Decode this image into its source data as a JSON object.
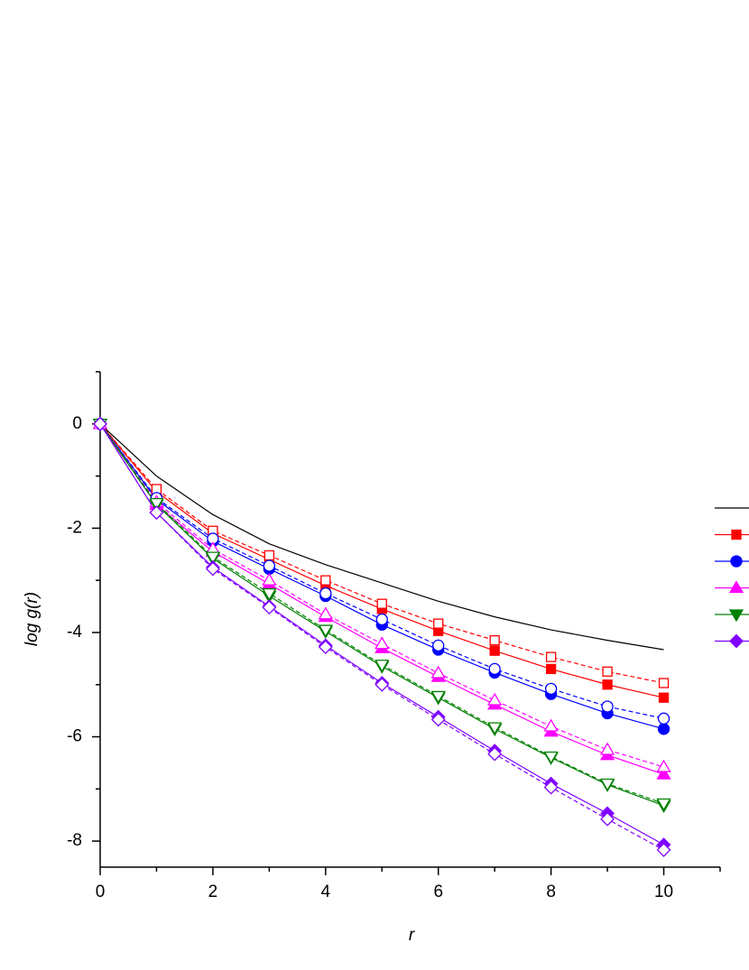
{
  "chart_data": {
    "type": "line",
    "x_label": "r",
    "y_label": "log g(r)",
    "x": [
      0,
      1,
      2,
      3,
      4,
      5,
      6,
      7,
      8,
      9,
      10
    ],
    "xlim": [
      0,
      11
    ],
    "ylim": [
      -8.5,
      1
    ],
    "xticks": [
      0,
      2,
      4,
      6,
      8,
      10
    ],
    "yticks": [
      0,
      -2,
      -4,
      -6,
      -8
    ],
    "xminorticks": [
      1,
      3,
      5,
      7,
      9,
      11
    ],
    "yminorticks": [
      1,
      -1,
      -3,
      -5,
      -7
    ],
    "series": [
      {
        "color": "#000000",
        "marker": "none",
        "filled": true,
        "dashed": false,
        "in_legend": true,
        "values": [
          0,
          -1.0,
          -1.74,
          -2.3,
          -2.7,
          -3.05,
          -3.4,
          -3.7,
          -3.95,
          -4.15,
          -4.33
        ]
      },
      {
        "color": "#ff0000",
        "marker": "square",
        "filled": true,
        "dashed": false,
        "in_legend": true,
        "values": [
          0,
          -1.3,
          -2.1,
          -2.6,
          -3.1,
          -3.55,
          -3.97,
          -4.35,
          -4.7,
          -5.0,
          -5.25
        ]
      },
      {
        "color": "#ff0000",
        "marker": "square",
        "filled": false,
        "dashed": true,
        "in_legend": false,
        "values": [
          0,
          -1.25,
          -2.05,
          -2.52,
          -3.0,
          -3.45,
          -3.83,
          -4.15,
          -4.47,
          -4.75,
          -4.97
        ]
      },
      {
        "color": "#0000ff",
        "marker": "circle",
        "filled": true,
        "dashed": false,
        "in_legend": true,
        "values": [
          0,
          -1.45,
          -2.25,
          -2.78,
          -3.3,
          -3.85,
          -4.33,
          -4.77,
          -5.18,
          -5.55,
          -5.85
        ]
      },
      {
        "color": "#0000ff",
        "marker": "circle",
        "filled": false,
        "dashed": true,
        "in_legend": false,
        "values": [
          0,
          -1.42,
          -2.2,
          -2.72,
          -3.25,
          -3.75,
          -4.25,
          -4.7,
          -5.08,
          -5.42,
          -5.65
        ]
      },
      {
        "color": "#ff00ff",
        "marker": "triangle-up",
        "filled": true,
        "dashed": false,
        "in_legend": true,
        "values": [
          0,
          -1.55,
          -2.45,
          -3.07,
          -3.7,
          -4.3,
          -4.85,
          -5.38,
          -5.9,
          -6.35,
          -6.72
        ]
      },
      {
        "color": "#ff00ff",
        "marker": "triangle-up",
        "filled": false,
        "dashed": true,
        "in_legend": false,
        "values": [
          0,
          -1.5,
          -2.4,
          -3.0,
          -3.65,
          -4.22,
          -4.78,
          -5.3,
          -5.8,
          -6.25,
          -6.58
        ]
      },
      {
        "color": "#008000",
        "marker": "triangle-down",
        "filled": true,
        "dashed": false,
        "in_legend": true,
        "values": [
          0,
          -1.55,
          -2.58,
          -3.3,
          -3.98,
          -4.65,
          -5.25,
          -5.85,
          -6.4,
          -6.92,
          -7.32
        ]
      },
      {
        "color": "#008000",
        "marker": "triangle-down",
        "filled": false,
        "dashed": true,
        "in_legend": false,
        "values": [
          0,
          -1.52,
          -2.55,
          -3.25,
          -3.95,
          -4.62,
          -5.22,
          -5.82,
          -6.38,
          -6.9,
          -7.28
        ]
      },
      {
        "color": "#7f00ff",
        "marker": "diamond",
        "filled": true,
        "dashed": false,
        "in_legend": true,
        "values": [
          0,
          -1.7,
          -2.75,
          -3.5,
          -4.25,
          -4.97,
          -5.62,
          -6.27,
          -6.9,
          -7.47,
          -8.07
        ]
      },
      {
        "color": "#7f00ff",
        "marker": "diamond",
        "filled": false,
        "dashed": true,
        "in_legend": false,
        "values": [
          0,
          -1.7,
          -2.78,
          -3.52,
          -4.28,
          -5.0,
          -5.67,
          -6.33,
          -6.97,
          -7.58,
          -8.17
        ]
      }
    ]
  }
}
